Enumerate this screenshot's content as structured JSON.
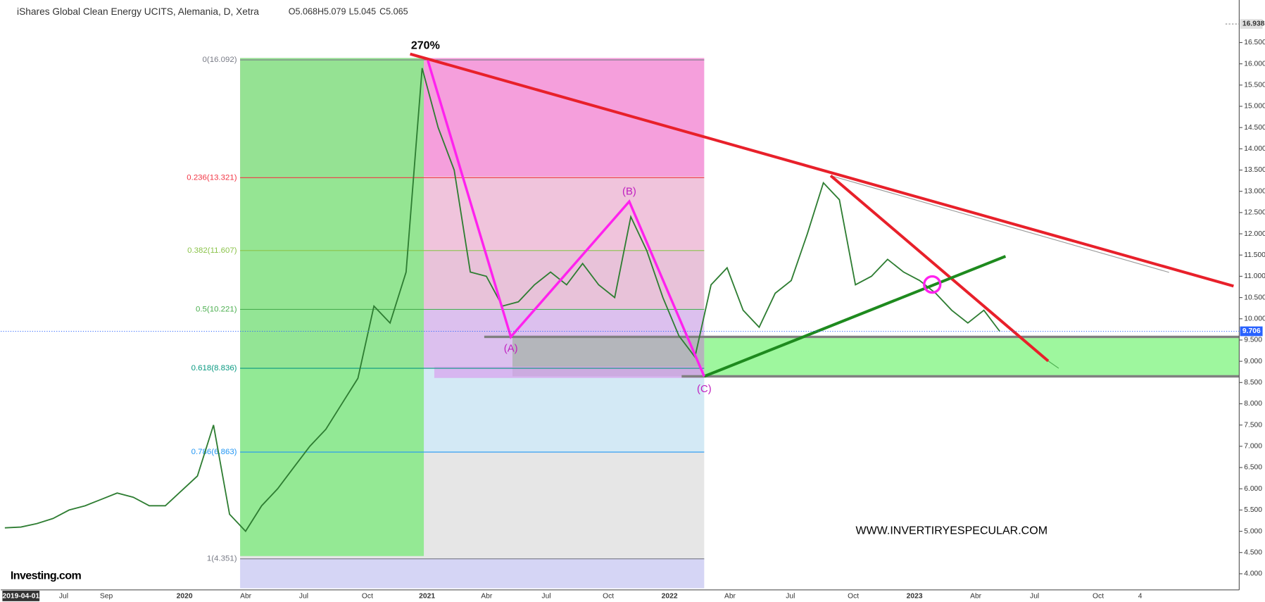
{
  "header": {
    "title": "iShares Global Clean Energy UCITS, Alemania, D, Xetra",
    "ohlc": [
      "O5.068",
      "H5.079",
      "L5.045",
      "C5.065"
    ]
  },
  "chart_data": {
    "type": "line",
    "color": "#2e7d32",
    "values": [
      5.08,
      5.1,
      5.18,
      5.3,
      5.5,
      5.6,
      5.75,
      5.9,
      5.8,
      5.6,
      5.6,
      5.95,
      6.3,
      7.5,
      5.4,
      5.0,
      5.6,
      6.0,
      6.5,
      7.0,
      7.4,
      8.0,
      8.6,
      10.3,
      9.9,
      11.1,
      15.9,
      14.5,
      13.5,
      11.1,
      11.0,
      10.3,
      10.4,
      10.8,
      11.1,
      10.8,
      11.3,
      10.8,
      10.5,
      12.4,
      11.6,
      10.5,
      9.6,
      9.1,
      10.8,
      11.2,
      10.2,
      9.8,
      10.6,
      10.9,
      12.0,
      13.2,
      12.8,
      10.8,
      11.0,
      11.4,
      11.1,
      10.9,
      10.6,
      10.2,
      9.9,
      10.2,
      9.7
    ],
    "ylim": [
      3.62,
      17.35
    ],
    "yticks": [
      {
        "value": 4,
        "label": "4.000"
      },
      {
        "value": 4.5,
        "label": "4.500"
      },
      {
        "value": 5,
        "label": "5.000"
      },
      {
        "value": 5.5,
        "label": "5.500"
      },
      {
        "value": 6,
        "label": "6.000"
      },
      {
        "value": 6.5,
        "label": "6.500"
      },
      {
        "value": 7,
        "label": "7.000"
      },
      {
        "value": 7.5,
        "label": "7.500"
      },
      {
        "value": 8,
        "label": "8.000"
      },
      {
        "value": 8.5,
        "label": "8.500"
      },
      {
        "value": 9,
        "label": "9.000"
      },
      {
        "value": 9.5,
        "label": "9.500"
      },
      {
        "value": 10,
        "label": "10.000"
      },
      {
        "value": 10.5,
        "label": "10.500"
      },
      {
        "value": 11,
        "label": "11.000"
      },
      {
        "value": 11.5,
        "label": "11.500"
      },
      {
        "value": 12,
        "label": "12.000"
      },
      {
        "value": 12.5,
        "label": "12.500"
      },
      {
        "value": 13,
        "label": "13.000"
      },
      {
        "value": 13.5,
        "label": "13.500"
      },
      {
        "value": 14,
        "label": "14.000"
      },
      {
        "value": 14.5,
        "label": "14.500"
      },
      {
        "value": 15,
        "label": "15.000"
      },
      {
        "value": 15.5,
        "label": "15.500"
      },
      {
        "value": 16,
        "label": "16.000"
      },
      {
        "value": 16.5,
        "label": "16.500"
      }
    ],
    "x_labels": [
      "2019-04-01",
      "Jul",
      "Sep",
      "2020",
      "Abr",
      "Jul",
      "Oct",
      "2021",
      "Abr",
      "Jul",
      "Oct",
      "2022",
      "Abr",
      "Jul",
      "Oct",
      "2023",
      "Abr",
      "Jul",
      "Oct",
      "4"
    ],
    "fib_levels": [
      {
        "label": "0(16.092)",
        "value": 16.092,
        "color": "#787b86"
      },
      {
        "label": "0.236(13.321)",
        "value": 13.321,
        "color": "#f23645"
      },
      {
        "label": "0.382(11.607)",
        "value": 11.607,
        "color": "#8bc34a"
      },
      {
        "label": "0.5(10.221)",
        "value": 10.221,
        "color": "#4caf50"
      },
      {
        "label": "0.618(8.836)",
        "value": 8.836,
        "color": "#089981"
      },
      {
        "label": "0.786(6.863)",
        "value": 6.863,
        "color": "#2196f3"
      },
      {
        "label": "1(4.351)",
        "value": 4.351,
        "color": "#787b86"
      }
    ],
    "last_price": 9.706,
    "top_price": 16.938,
    "annotations": {
      "peak": "270%",
      "a": "(A)",
      "b": "(B)",
      "c": "(C)",
      "watermark": "WWW.INVERTIRYESPECULAR.COM",
      "logo": "Investing.com"
    }
  }
}
